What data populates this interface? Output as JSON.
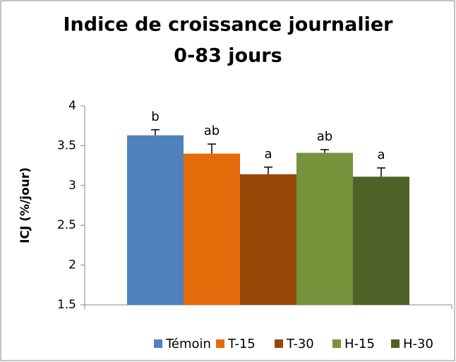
{
  "chart_data": {
    "type": "bar",
    "title": "Indice de croissance journalier",
    "subtitle": "0-83 jours",
    "y_label": "ICJ (%/jour)",
    "categories": [
      null
    ],
    "series": [
      {
        "name": "Témoin",
        "color": "#4f81bd",
        "values": [
          3.63
        ],
        "errors": [
          0.07
        ],
        "annotation": "b"
      },
      {
        "name": "T-15",
        "color": "#e46c0a",
        "values": [
          3.4
        ],
        "errors": [
          0.12
        ],
        "annotation": "ab"
      },
      {
        "name": "T-30",
        "color": "#974806",
        "values": [
          3.14
        ],
        "errors": [
          0.09
        ],
        "annotation": "a"
      },
      {
        "name": "H-15",
        "color": "#77933c",
        "values": [
          3.41
        ],
        "errors": [
          0.04
        ],
        "annotation": "ab"
      },
      {
        "name": "H-30",
        "color": "#4f6228",
        "values": [
          3.11
        ],
        "errors": [
          0.11
        ],
        "annotation": "a"
      }
    ],
    "ylim": [
      1.5,
      4
    ],
    "yticks": [
      {
        "value": 1.5,
        "label": "1.5"
      },
      {
        "value": 2,
        "label": "2"
      },
      {
        "value": 2.5,
        "label": "2.5"
      },
      {
        "value": 3,
        "label": "3"
      },
      {
        "value": 3.5,
        "label": "3.5"
      },
      {
        "value": 4,
        "label": "4"
      }
    ],
    "legend": "bottom",
    "grid": false
  }
}
